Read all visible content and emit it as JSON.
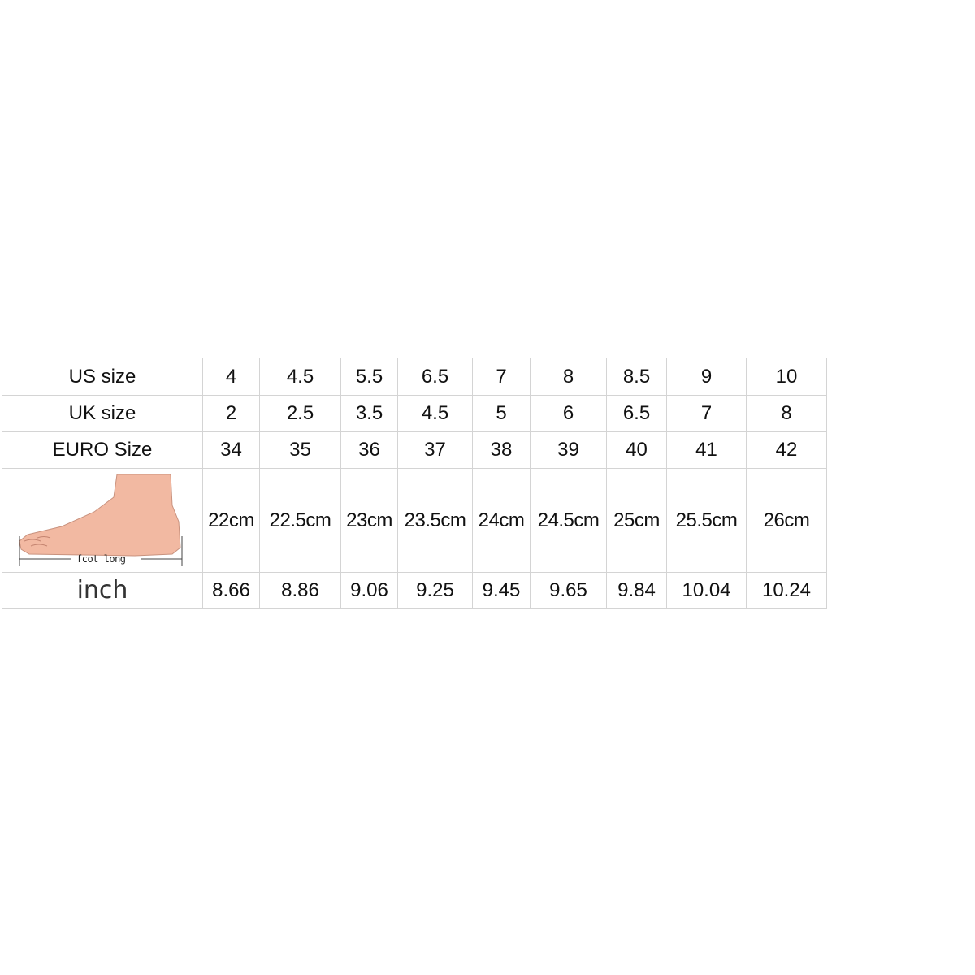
{
  "rows": [
    {
      "label": "US size",
      "values": [
        "4",
        "4.5",
        "5.5",
        "6.5",
        "7",
        "8",
        "8.5",
        "9",
        "10"
      ]
    },
    {
      "label": "UK size",
      "values": [
        "2",
        "2.5",
        "3.5",
        "4.5",
        "5",
        "6",
        "6.5",
        "7",
        "8"
      ]
    },
    {
      "label": "EURO Size",
      "values": [
        "34",
        "35",
        "36",
        "37",
        "38",
        "39",
        "40",
        "41",
        "42"
      ]
    },
    {
      "label": "",
      "image": "foot-illustration",
      "image_caption": "fcot long",
      "values": [
        "22cm",
        "22.5cm",
        "23cm",
        "23.5cm",
        "24cm",
        "24.5cm",
        "25cm",
        "25.5cm",
        "26cm"
      ]
    },
    {
      "label": "inch",
      "values": [
        "8.66",
        "8.86",
        "9.06",
        "9.25",
        "9.45",
        "9.65",
        "9.84",
        "10.04",
        "10.24"
      ]
    }
  ],
  "colors": {
    "border": "#d4d4d4",
    "skin": "#f2b9a2",
    "text": "#111111"
  }
}
